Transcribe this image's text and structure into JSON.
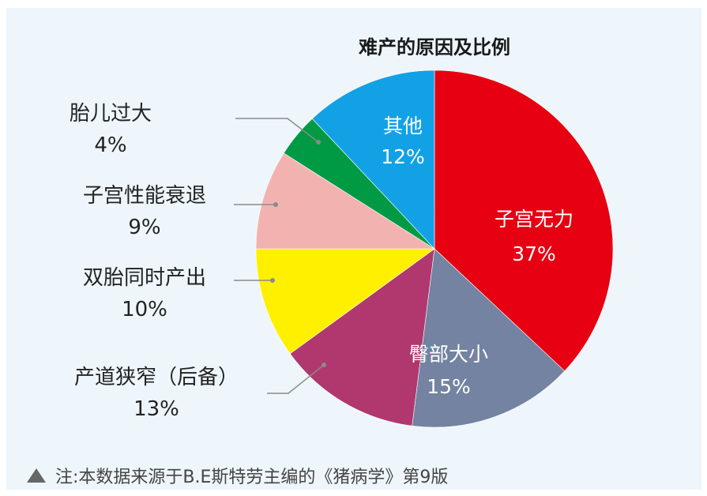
{
  "chart_data": {
    "type": "pie",
    "title": "难产的原因及比例",
    "slices": [
      {
        "label": "子宫无力",
        "value": 37,
        "display": "37%",
        "color": "#e60012",
        "label_pos": "inside"
      },
      {
        "label": "臀部大小",
        "value": 15,
        "display": "15%",
        "color": "#7383a1",
        "label_pos": "inside"
      },
      {
        "label": "产道狭窄（后备）",
        "value": 13,
        "display": "13%",
        "color": "#b0386e",
        "label_pos": "outside"
      },
      {
        "label": "双胎同时产出",
        "value": 10,
        "display": "10%",
        "color": "#fff000",
        "label_pos": "outside"
      },
      {
        "label": "子宫性能衰退",
        "value": 9,
        "display": "9%",
        "color": "#f2b3b0",
        "label_pos": "outside"
      },
      {
        "label": "胎儿过大",
        "value": 4,
        "display": "4%",
        "color": "#009a44",
        "label_pos": "outside"
      },
      {
        "label": "其他",
        "value": 12,
        "display": "12%",
        "color": "#13a1e6",
        "label_pos": "inside"
      }
    ]
  },
  "footer": {
    "note": "注:本数据来源于B.E斯特劳主编的《猪病学》第9版"
  }
}
